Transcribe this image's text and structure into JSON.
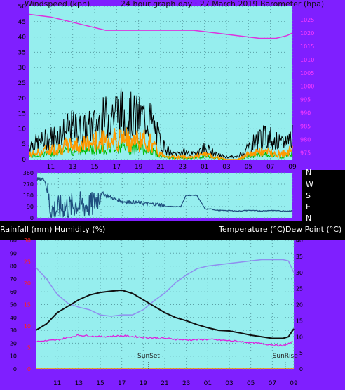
{
  "top": {
    "left_title": "Windspeed (kph)",
    "center_title": "24 hour graph day : 27 March 2019",
    "right_title": "Barometer (hpa)"
  },
  "wind_dir_labels": [
    "N",
    "W",
    "S",
    "E",
    "N"
  ],
  "bottom": {
    "left_title": "Rainfall (mm)  Humidity (%)",
    "right_title": "Temperature (°C)Dew Point (°C)",
    "sunset_label": "SunSet",
    "sunrise_label": "SunRise"
  },
  "colors": {
    "frame": "#7f1fff",
    "plot_bg": "#96eeee",
    "grid": "#5aa0a6",
    "wind_gust": "#000000",
    "wind_avg": "#ff9900",
    "wind_other": "#00bb00",
    "barometer": "#dd33dd",
    "wind_dir": "#1f4f7f",
    "temperature": "#111111",
    "humidity": "#8f8fef",
    "dewpoint": "#dd22dd",
    "rain_axis": "#ff2020"
  },
  "chart_data": [
    {
      "type": "line",
      "name": "wind-barometer",
      "x_ticks": [
        "11",
        "13",
        "15",
        "17",
        "19",
        "21",
        "23",
        "01",
        "03",
        "05",
        "07",
        "09"
      ],
      "y_left_ticks": [
        "0",
        "5",
        "10",
        "15",
        "20",
        "25",
        "30",
        "35",
        "40",
        "45",
        "50"
      ],
      "y_left_range": [
        0,
        50
      ],
      "y_right_ticks": [
        "975",
        "980",
        "985",
        "990",
        "995",
        "1000",
        "1005",
        "1010",
        "1015",
        "1020",
        "1025"
      ],
      "y_right_range": [
        972.5,
        1030
      ],
      "x_range_hours": [
        9.0,
        33.0
      ],
      "barometer": {
        "x": [
          9.0,
          11.0,
          13.0,
          15.0,
          16.0,
          18.0,
          20.0,
          22.0,
          24.0,
          26.0,
          28.0,
          30.0,
          31.5,
          32.5,
          33.0
        ],
        "y": [
          1027,
          1026,
          1024,
          1022,
          1021,
          1021,
          1021,
          1021,
          1021,
          1020,
          1019,
          1018,
          1018,
          1019,
          1020
        ]
      },
      "wind_gust_envelope": {
        "x": [
          9,
          10,
          11,
          12,
          13,
          14,
          15,
          16,
          17,
          18,
          19,
          20,
          21,
          22,
          23,
          24,
          25,
          26,
          27,
          28,
          29,
          30,
          31,
          32,
          33
        ],
        "y": [
          6,
          7,
          9,
          11,
          13,
          12,
          14,
          17,
          20,
          18,
          17,
          17,
          7,
          2,
          3,
          2,
          5,
          2,
          1,
          1,
          5,
          9,
          9,
          6,
          10
        ]
      },
      "wind_avg_envelope": {
        "x": [
          9,
          10,
          11,
          12,
          13,
          14,
          15,
          16,
          17,
          18,
          19,
          20,
          21,
          22,
          23,
          24,
          25,
          26,
          27,
          28,
          29,
          30,
          31,
          32,
          33
        ],
        "y": [
          2,
          3,
          4,
          5,
          6,
          6,
          7,
          8,
          9,
          8,
          8,
          7,
          2,
          1,
          1,
          1,
          2,
          1,
          0,
          0,
          2,
          3,
          3,
          2,
          4
        ]
      }
    },
    {
      "type": "line",
      "name": "wind-direction",
      "y_ticks": [
        "0",
        "90",
        "180",
        "270",
        "360"
      ],
      "y_range": [
        0,
        360
      ],
      "x_range_hours": [
        9.0,
        33.0
      ],
      "x": [
        9.0,
        9.7,
        10.3,
        11.0,
        11.5,
        12.0,
        12.7,
        13.4,
        14.2,
        15.0,
        16.0,
        17.0,
        18.0,
        19.0,
        20.0,
        20.8,
        21.1,
        21.5,
        22.0,
        22.5,
        23.0,
        23.3,
        24.0,
        24.8,
        25.3,
        26.0,
        28.0,
        29.0,
        30.0,
        31.0,
        32.0,
        33.0
      ],
      "y": [
        310,
        310,
        60,
        70,
        90,
        80,
        110,
        95,
        100,
        200,
        160,
        130,
        125,
        115,
        110,
        105,
        90,
        90,
        90,
        90,
        180,
        180,
        180,
        70,
        70,
        60,
        55,
        60,
        55,
        60,
        55,
        55
      ]
    },
    {
      "type": "line",
      "name": "temperature-humidity",
      "x_ticks": [
        "11",
        "13",
        "15",
        "17",
        "19",
        "21",
        "23",
        "01",
        "03",
        "05",
        "07",
        "09"
      ],
      "y_left_ticks": [
        "0",
        "10",
        "20",
        "30",
        "40",
        "50",
        "60",
        "70",
        "80",
        "90",
        "100"
      ],
      "y_left_range": [
        0,
        100
      ],
      "y_right_ticks": [
        "0",
        "5",
        "10",
        "15",
        "20",
        "25",
        "30",
        "35",
        "40"
      ],
      "y_right_range": [
        0,
        40
      ],
      "rain_ticks": [
        "0",
        "5",
        "10",
        "15",
        "20",
        "25",
        "30"
      ],
      "x_range_hours": [
        9.0,
        33.0
      ],
      "temperature": {
        "x": [
          9,
          10,
          11,
          12,
          13,
          14,
          15,
          16,
          17,
          18,
          19,
          20,
          21,
          22,
          23,
          24,
          25,
          26,
          27,
          28,
          29,
          30,
          31,
          32,
          32.5,
          33
        ],
        "y": [
          12,
          14,
          17.5,
          19.5,
          21.5,
          23,
          23.8,
          24.2,
          24.5,
          23.5,
          21.5,
          19.5,
          17.5,
          16,
          15,
          13.8,
          12.8,
          12,
          11.8,
          11.2,
          10.5,
          10,
          9.5,
          9.5,
          10,
          12.5
        ]
      },
      "humidity": {
        "x": [
          9,
          10,
          11,
          12,
          13,
          14,
          15,
          16,
          17,
          18,
          19,
          20,
          21,
          22,
          23,
          24,
          25,
          26,
          27,
          28,
          29,
          30,
          31,
          32,
          32.5,
          33
        ],
        "y": [
          79,
          70,
          58,
          51,
          48,
          46,
          42,
          41,
          42,
          42,
          46,
          53,
          59,
          67,
          73,
          78,
          80,
          81,
          82,
          83,
          84,
          85,
          85,
          85,
          84,
          75
        ]
      },
      "dewpoint": {
        "x": [
          9,
          11,
          13,
          15,
          17,
          19,
          21,
          23,
          25,
          27,
          29,
          31,
          32,
          33
        ],
        "y": [
          8.5,
          9.0,
          10.5,
          10.0,
          10.3,
          9.8,
          9.5,
          9.0,
          9.2,
          8.8,
          8.2,
          7.5,
          7.2,
          8.5
        ]
      },
      "markers": {
        "sunset_hour": 19.5,
        "sunrise_hour": 32.2
      }
    }
  ]
}
